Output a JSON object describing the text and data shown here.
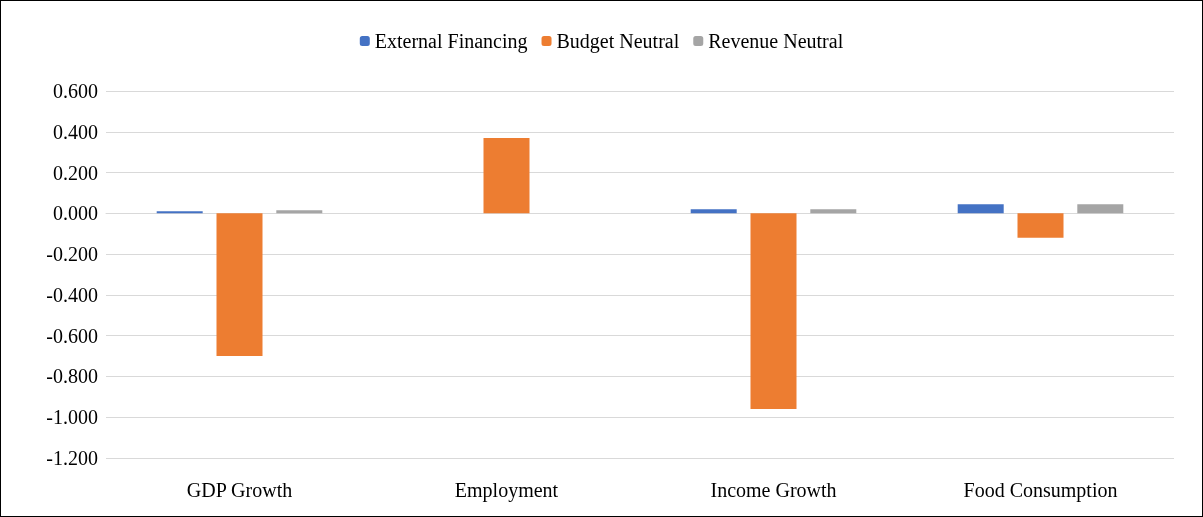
{
  "chart_data": {
    "type": "bar",
    "categories": [
      "GDP Growth",
      "Employment",
      "Income Growth",
      "Food Consumption"
    ],
    "series": [
      {
        "name": "External Financing",
        "color": "#4472c4",
        "values": [
          0.01,
          null,
          0.02,
          0.045
        ]
      },
      {
        "name": "Budget Neutral",
        "color": "#ed7d31",
        "values": [
          -0.7,
          0.37,
          -0.96,
          -0.12
        ]
      },
      {
        "name": "Revenue Neutral",
        "color": "#a5a5a5",
        "values": [
          0.015,
          0,
          0.02,
          0.045
        ]
      }
    ],
    "ylim": [
      -1.2,
      0.6
    ],
    "yticks": [
      {
        "value": -1.2,
        "label": "-1.200"
      },
      {
        "value": -1.0,
        "label": "-1.000"
      },
      {
        "value": -0.8,
        "label": "-0.800"
      },
      {
        "value": -0.6,
        "label": "-0.600"
      },
      {
        "value": -0.4,
        "label": "-0.400"
      },
      {
        "value": -0.2,
        "label": "-0.200"
      },
      {
        "value": 0,
        "label": "0.000"
      },
      {
        "value": 0.2,
        "label": "0.200"
      },
      {
        "value": 0.4,
        "label": "0.400"
      },
      {
        "value": 0.6,
        "label": "0.600"
      }
    ],
    "grid": "y",
    "legend": "top"
  }
}
